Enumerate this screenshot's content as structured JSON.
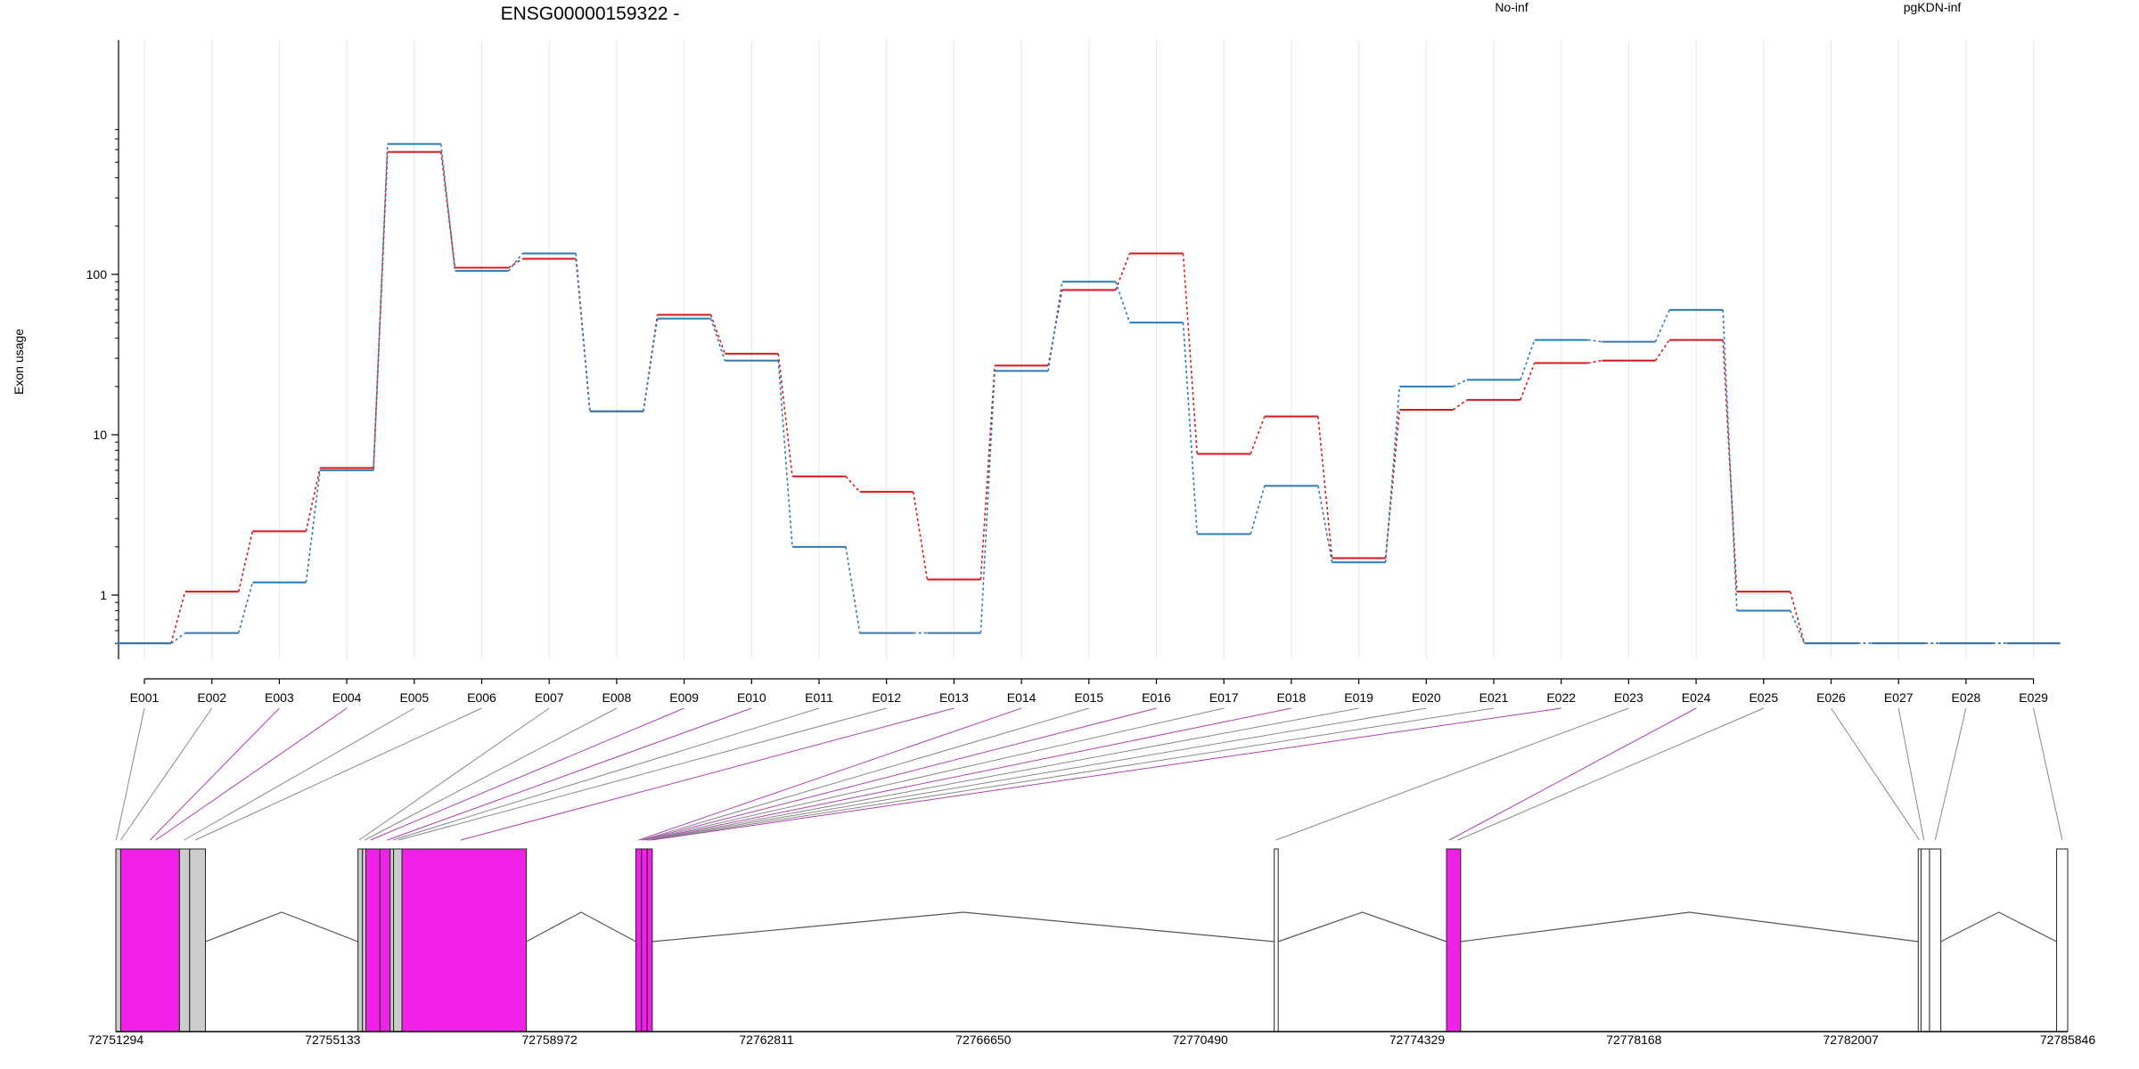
{
  "chart_data": {
    "type": "line",
    "title": "ENSG00000159322 -",
    "ylabel": "Exon usage",
    "y_scale": "log",
    "ylim": [
      0.5,
      800
    ],
    "y_ticks": [
      {
        "value": 1,
        "label": "1"
      },
      {
        "value": 10,
        "label": "10"
      },
      {
        "value": 100,
        "label": "100"
      }
    ],
    "categories": [
      "E001",
      "E002",
      "E003",
      "E004",
      "E005",
      "E006",
      "E007",
      "E008",
      "E009",
      "E010",
      "E011",
      "E012",
      "E013",
      "E014",
      "E015",
      "E016",
      "E017",
      "E018",
      "E019",
      "E020",
      "E021",
      "E022",
      "E023",
      "E024",
      "E025",
      "E026",
      "E027",
      "E028",
      "E029"
    ],
    "series": [
      {
        "name": "No-inf",
        "color": "#d7191c",
        "values": [
          0.5,
          1.05,
          2.5,
          6.2,
          580,
          110,
          125,
          14,
          56,
          32,
          5.5,
          4.4,
          1.25,
          27,
          80,
          135,
          7.6,
          13,
          1.7,
          14.3,
          16.5,
          28,
          29,
          39,
          1.05,
          0.5,
          0.5,
          0.5,
          0.5
        ]
      },
      {
        "name": "pgKDN-inf",
        "color": "#2c7bb6",
        "values": [
          0.5,
          0.58,
          1.2,
          6.0,
          650,
          105,
          135,
          14,
          53,
          29,
          2.0,
          0.58,
          0.58,
          25,
          90,
          50,
          2.4,
          4.8,
          1.6,
          20,
          22,
          39,
          38,
          60,
          0.8,
          0.5,
          0.5,
          0.5,
          0.5
        ]
      }
    ],
    "gene_model": {
      "coordinate_ticks": [
        "72751294",
        "72755133",
        "72758972",
        "72762811",
        "72766650",
        "72770490",
        "72774329",
        "72778168",
        "72782007",
        "72785846"
      ],
      "genomic_range": [
        72751294,
        72785846
      ],
      "exon_fill": "#f022e8",
      "blocks": [
        {
          "start": 72751294,
          "end": 72751380,
          "fill": "#cccccc"
        },
        {
          "start": 72751380,
          "end": 72752420,
          "fill": "#f022e8"
        },
        {
          "start": 72752420,
          "end": 72752600,
          "fill": "#cccccc"
        },
        {
          "start": 72752600,
          "end": 72752880,
          "fill": "#cccccc"
        },
        {
          "start": 72755580,
          "end": 72755660,
          "fill": "#cccccc"
        },
        {
          "start": 72755660,
          "end": 72755720,
          "fill": "#cccccc"
        },
        {
          "start": 72755720,
          "end": 72755970,
          "fill": "#f022e8"
        },
        {
          "start": 72755970,
          "end": 72756150,
          "fill": "#f022e8"
        },
        {
          "start": 72756150,
          "end": 72756210,
          "fill": "#cccccc"
        },
        {
          "start": 72756210,
          "end": 72756360,
          "fill": "#cccccc"
        },
        {
          "start": 72756360,
          "end": 72758560,
          "fill": "#f022e8"
        },
        {
          "start": 72760500,
          "end": 72760600,
          "fill": "#f022e8"
        },
        {
          "start": 72760600,
          "end": 72760700,
          "fill": "#f022e8"
        },
        {
          "start": 72760700,
          "end": 72760790,
          "fill": "#f022e8"
        },
        {
          "start": 72771800,
          "end": 72771870,
          "fill": "#ffffff"
        },
        {
          "start": 72774850,
          "end": 72775100,
          "fill": "#f022e8"
        },
        {
          "start": 72783200,
          "end": 72783250,
          "fill": "#ffffff"
        },
        {
          "start": 72783250,
          "end": 72783400,
          "fill": "#ffffff"
        },
        {
          "start": 72783400,
          "end": 72783600,
          "fill": "#ffffff"
        },
        {
          "start": 72785650,
          "end": 72785846,
          "fill": "#ffffff"
        }
      ],
      "introns": [
        [
          72752880,
          72755580
        ],
        [
          72758560,
          72760500
        ],
        [
          72760790,
          72771800
        ],
        [
          72771870,
          72774850
        ],
        [
          72775100,
          72783200
        ],
        [
          72783600,
          72785650
        ]
      ],
      "exon_links": [
        {
          "exon": "E001",
          "genomic": 72751300,
          "color": "#888888"
        },
        {
          "exon": "E002",
          "genomic": 72751380,
          "color": "#888888"
        },
        {
          "exon": "E003",
          "genomic": 72751900,
          "color": "#b040b0"
        },
        {
          "exon": "E004",
          "genomic": 72752000,
          "color": "#b040b0"
        },
        {
          "exon": "E005",
          "genomic": 72752500,
          "color": "#888888"
        },
        {
          "exon": "E006",
          "genomic": 72752700,
          "color": "#888888"
        },
        {
          "exon": "E007",
          "genomic": 72755600,
          "color": "#888888"
        },
        {
          "exon": "E008",
          "genomic": 72755700,
          "color": "#888888"
        },
        {
          "exon": "E009",
          "genomic": 72755800,
          "color": "#b040b0"
        },
        {
          "exon": "E010",
          "genomic": 72756100,
          "color": "#b040b0"
        },
        {
          "exon": "E011",
          "genomic": 72756200,
          "color": "#888888"
        },
        {
          "exon": "E012",
          "genomic": 72756300,
          "color": "#888888"
        },
        {
          "exon": "E013",
          "genomic": 72757400,
          "color": "#b040b0"
        },
        {
          "exon": "E014",
          "genomic": 72760550,
          "color": "#b040b0"
        },
        {
          "exon": "E015",
          "genomic": 72760600,
          "color": "#888888"
        },
        {
          "exon": "E016",
          "genomic": 72760620,
          "color": "#b040b0"
        },
        {
          "exon": "E017",
          "genomic": 72760650,
          "color": "#888888"
        },
        {
          "exon": "E018",
          "genomic": 72760680,
          "color": "#b040b0"
        },
        {
          "exon": "E019",
          "genomic": 72760700,
          "color": "#888888"
        },
        {
          "exon": "E020",
          "genomic": 72760720,
          "color": "#888888"
        },
        {
          "exon": "E021",
          "genomic": 72760750,
          "color": "#888888"
        },
        {
          "exon": "E022",
          "genomic": 72760780,
          "color": "#b040b0"
        },
        {
          "exon": "E023",
          "genomic": 72771830,
          "color": "#888888"
        },
        {
          "exon": "E024",
          "genomic": 72774900,
          "color": "#b040b0"
        },
        {
          "exon": "E025",
          "genomic": 72775050,
          "color": "#888888"
        },
        {
          "exon": "E026",
          "genomic": 72783220,
          "color": "#888888"
        },
        {
          "exon": "E027",
          "genomic": 72783300,
          "color": "#888888"
        },
        {
          "exon": "E028",
          "genomic": 72783500,
          "color": "#888888"
        },
        {
          "exon": "E029",
          "genomic": 72785750,
          "color": "#888888"
        }
      ]
    }
  }
}
